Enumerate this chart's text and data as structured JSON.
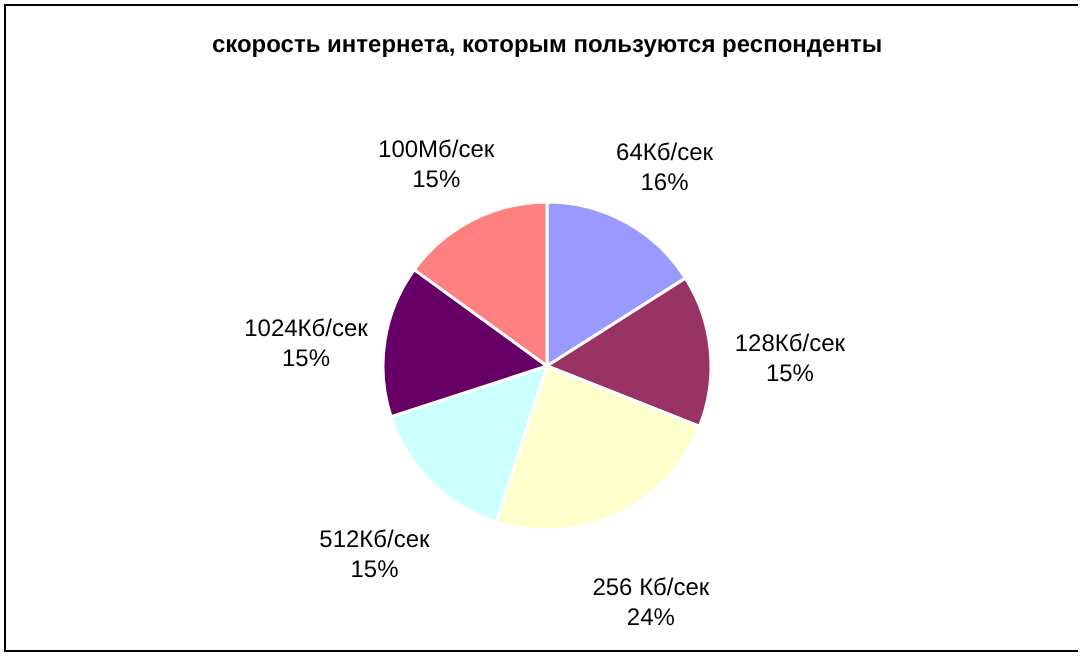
{
  "chart_data": {
    "type": "pie",
    "title": "скорость интернета, которым пользуются респонденты",
    "categories": [
      "64Кб/сек",
      "128Кб/сек",
      "256 Кб/сек",
      "512Кб/сек",
      "1024Кб/сек",
      "100Мб/сек"
    ],
    "values": [
      16,
      15,
      24,
      15,
      15,
      15
    ],
    "value_labels": [
      "16%",
      "15%",
      "24%",
      "15%",
      "15%",
      "15%"
    ],
    "colors": [
      "#9999ff",
      "#993366",
      "#ffffcc",
      "#ccffff",
      "#660066",
      "#ff8080"
    ],
    "legend": false
  }
}
